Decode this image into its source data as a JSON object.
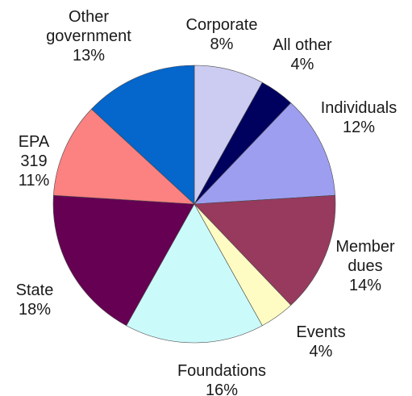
{
  "chart_data": {
    "type": "pie",
    "title": "",
    "slices": [
      {
        "label": [
          "Corporate"
        ],
        "pct_label": "8%",
        "value": 8,
        "color": "#ccccf2"
      },
      {
        "label": [
          "All other"
        ],
        "pct_label": "4%",
        "value": 4,
        "color": "#00005f"
      },
      {
        "label": [
          "Individuals"
        ],
        "pct_label": "12%",
        "value": 12,
        "color": "#9e9ef0"
      },
      {
        "label": [
          "Member",
          "dues"
        ],
        "pct_label": "14%",
        "value": 14,
        "color": "#973a5e"
      },
      {
        "label": [
          "Events"
        ],
        "pct_label": "4%",
        "value": 4,
        "color": "#fffcc3"
      },
      {
        "label": [
          "Foundations"
        ],
        "pct_label": "16%",
        "value": 16,
        "color": "#cbfafa"
      },
      {
        "label": [
          "State"
        ],
        "pct_label": "18%",
        "value": 18,
        "color": "#650052"
      },
      {
        "label": [
          "EPA",
          "319"
        ],
        "pct_label": "11%",
        "value": 11,
        "color": "#fc8181"
      },
      {
        "label": [
          "Other",
          "government"
        ],
        "pct_label": "13%",
        "value": 13,
        "color": "#0566cc"
      }
    ]
  }
}
